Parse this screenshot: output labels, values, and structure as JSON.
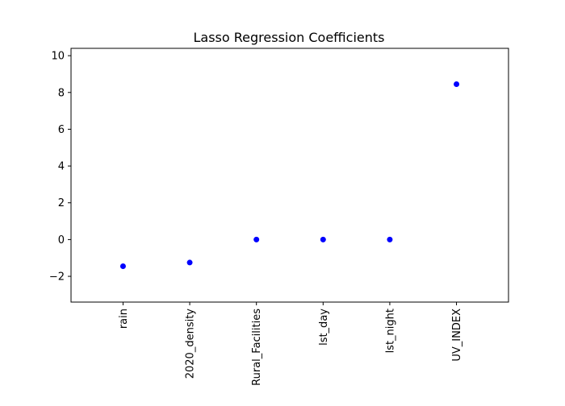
{
  "chart_data": {
    "type": "scatter",
    "title": "Lasso Regression Coefficients",
    "xlabel": "",
    "ylabel": "",
    "categories": [
      "rain",
      "2020_density",
      "Rural_Facilities",
      "lst_day",
      "lst_night",
      "UV_INDEX"
    ],
    "values": [
      -1.45,
      -1.25,
      0.0,
      0.0,
      0.0,
      8.45
    ],
    "ylim": [
      -3.4,
      10.4
    ],
    "yticks": [
      -2,
      0,
      2,
      4,
      6,
      8,
      10
    ],
    "ytick_labels": [
      "−2",
      "0",
      "2",
      "4",
      "6",
      "8",
      "10"
    ],
    "x_tick_rotation": "vertical",
    "grid": false,
    "legend": false,
    "marker_color": "#0000ff",
    "axis_color": "#000000"
  }
}
